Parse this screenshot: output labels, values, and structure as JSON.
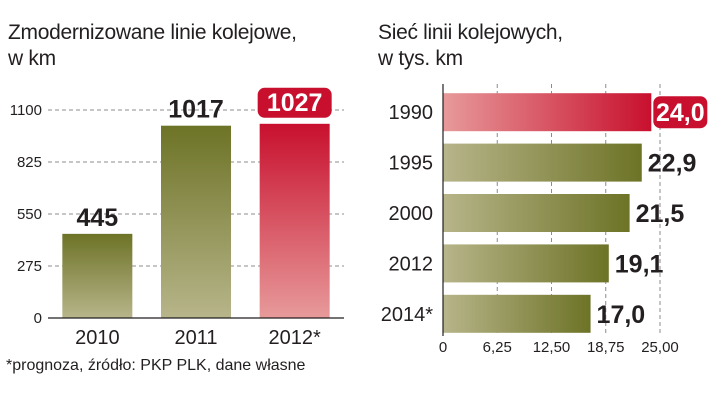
{
  "footnote": "*prognoza, źródło: PKP PLK, dane własne",
  "colors": {
    "olive_dark": "#6d7326",
    "olive_light": "#b7b58a",
    "red_dark": "#c8102e",
    "red_light": "#e79a9a",
    "grid": "#8c8c8c"
  },
  "chart_data": [
    {
      "type": "bar",
      "title": "Zmodernizowane linie kolejowe,\nw km",
      "categories": [
        "2010",
        "2011",
        "2012*"
      ],
      "values": [
        445,
        1017,
        1027
      ],
      "value_labels": [
        "445",
        "1017",
        "1027"
      ],
      "highlight": [
        false,
        false,
        true
      ],
      "yticks": [
        "0",
        "275",
        "550",
        "825",
        "1100"
      ],
      "ytick_values": [
        0,
        275,
        550,
        825,
        1100
      ],
      "ylim": [
        0,
        1100
      ],
      "grid": "dashed horizontal"
    },
    {
      "type": "bar",
      "orientation": "horizontal",
      "title": "Sieć linii kolejowych,\nw tys. km",
      "categories": [
        "1990",
        "1995",
        "2000",
        "2012",
        "2014*"
      ],
      "values": [
        24.0,
        22.9,
        21.5,
        19.1,
        17.0
      ],
      "value_labels": [
        "24,0",
        "22,9",
        "21,5",
        "19,1",
        "17,0"
      ],
      "highlight": [
        true,
        false,
        false,
        false,
        false
      ],
      "xticks": [
        "0",
        "6,25",
        "12,50",
        "18,75",
        "25,00"
      ],
      "xtick_values": [
        0,
        6.25,
        12.5,
        18.75,
        25
      ],
      "xlim": [
        0,
        25
      ],
      "grid": "dashed vertical"
    }
  ]
}
